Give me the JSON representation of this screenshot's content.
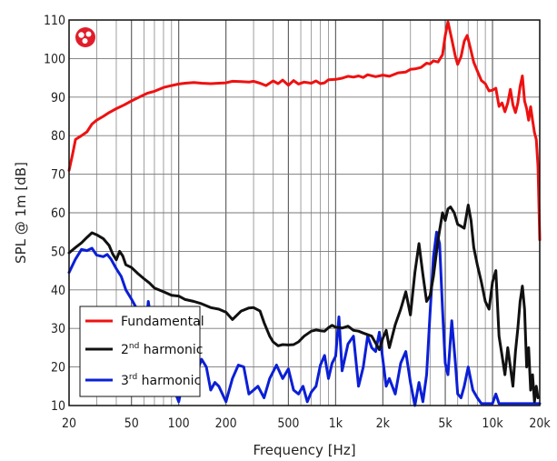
{
  "chart_data": {
    "type": "line",
    "title": "",
    "xlabel": "Frequency [Hz]",
    "ylabel": "SPL @ 1m [dB]",
    "xscale": "log",
    "xlim": [
      20,
      20000
    ],
    "ylim": [
      10,
      110
    ],
    "grid": true,
    "legend_position": "bottom-left",
    "x_ticks": [
      {
        "value": 20,
        "label": "20"
      },
      {
        "value": 50,
        "label": "50"
      },
      {
        "value": 100,
        "label": "100"
      },
      {
        "value": 200,
        "label": "200"
      },
      {
        "value": 500,
        "label": "500"
      },
      {
        "value": 1000,
        "label": "1k"
      },
      {
        "value": 2000,
        "label": "2k"
      },
      {
        "value": 5000,
        "label": "5k"
      },
      {
        "value": 10000,
        "label": "10k"
      },
      {
        "value": 20000,
        "label": "20k"
      }
    ],
    "y_ticks": [
      10,
      20,
      30,
      40,
      50,
      60,
      70,
      80,
      90,
      100,
      110
    ],
    "series": [
      {
        "name": "Fundamental",
        "color": "#ee1111",
        "points": [
          [
            20,
            71
          ],
          [
            21,
            75
          ],
          [
            22,
            79
          ],
          [
            24,
            80
          ],
          [
            26,
            81
          ],
          [
            28,
            83
          ],
          [
            30,
            84
          ],
          [
            33,
            85
          ],
          [
            36,
            86
          ],
          [
            40,
            87
          ],
          [
            45,
            88
          ],
          [
            50,
            89
          ],
          [
            56,
            90
          ],
          [
            63,
            91
          ],
          [
            70,
            91.5
          ],
          [
            80,
            92.5
          ],
          [
            90,
            93
          ],
          [
            100,
            93.4
          ],
          [
            110,
            93.6
          ],
          [
            125,
            93.8
          ],
          [
            140,
            93.6
          ],
          [
            160,
            93.5
          ],
          [
            180,
            93.6
          ],
          [
            200,
            93.7
          ],
          [
            220,
            94.1
          ],
          [
            250,
            94
          ],
          [
            280,
            93.9
          ],
          [
            300,
            94.1
          ],
          [
            330,
            93.6
          ],
          [
            360,
            93
          ],
          [
            400,
            94.2
          ],
          [
            430,
            93.5
          ],
          [
            460,
            94.4
          ],
          [
            500,
            93.1
          ],
          [
            540,
            94.3
          ],
          [
            580,
            93.4
          ],
          [
            630,
            93.9
          ],
          [
            700,
            93.6
          ],
          [
            750,
            94.2
          ],
          [
            800,
            93.5
          ],
          [
            850,
            93.7
          ],
          [
            900,
            94.5
          ],
          [
            1000,
            94.6
          ],
          [
            1100,
            94.9
          ],
          [
            1200,
            95.4
          ],
          [
            1300,
            95.2
          ],
          [
            1400,
            95.5
          ],
          [
            1500,
            95.1
          ],
          [
            1600,
            95.8
          ],
          [
            1800,
            95.3
          ],
          [
            2000,
            95.7
          ],
          [
            2200,
            95.4
          ],
          [
            2500,
            96.3
          ],
          [
            2800,
            96.5
          ],
          [
            3000,
            97.2
          ],
          [
            3200,
            97.3
          ],
          [
            3500,
            97.7
          ],
          [
            3800,
            98.8
          ],
          [
            4000,
            98.6
          ],
          [
            4200,
            99.4
          ],
          [
            4500,
            99.1
          ],
          [
            4800,
            101
          ],
          [
            5000,
            106
          ],
          [
            5200,
            109.5
          ],
          [
            5500,
            105
          ],
          [
            5800,
            100.5
          ],
          [
            6000,
            98.5
          ],
          [
            6300,
            100.5
          ],
          [
            6600,
            104.5
          ],
          [
            6900,
            106
          ],
          [
            7200,
            103
          ],
          [
            7600,
            99
          ],
          [
            8000,
            96.8
          ],
          [
            8500,
            94.3
          ],
          [
            9000,
            93.5
          ],
          [
            9500,
            91.6
          ],
          [
            10000,
            91.8
          ],
          [
            10500,
            92.3
          ],
          [
            11000,
            87.6
          ],
          [
            11500,
            88.5
          ],
          [
            12000,
            86.2
          ],
          [
            12500,
            88.5
          ],
          [
            13000,
            92
          ],
          [
            13500,
            88
          ],
          [
            14000,
            86
          ],
          [
            14500,
            88.5
          ],
          [
            15000,
            92.8
          ],
          [
            15500,
            95.5
          ],
          [
            16000,
            89
          ],
          [
            16500,
            87
          ],
          [
            17000,
            84
          ],
          [
            17500,
            87.5
          ],
          [
            18000,
            84
          ],
          [
            18500,
            80.8
          ],
          [
            19000,
            79
          ],
          [
            19500,
            72
          ],
          [
            20000,
            53
          ]
        ]
      },
      {
        "name": "2nd harmonic",
        "color": "#111111",
        "points": [
          [
            20,
            49.6
          ],
          [
            22,
            51
          ],
          [
            24,
            52.2
          ],
          [
            26,
            53.6
          ],
          [
            28,
            54.8
          ],
          [
            30,
            54.3
          ],
          [
            33,
            53.3
          ],
          [
            36,
            51.5
          ],
          [
            38,
            49.3
          ],
          [
            40,
            47.8
          ],
          [
            42,
            50
          ],
          [
            44,
            48.8
          ],
          [
            46,
            46.5
          ],
          [
            50,
            45.8
          ],
          [
            55,
            44.2
          ],
          [
            60,
            42.9
          ],
          [
            65,
            41.8
          ],
          [
            70,
            40.5
          ],
          [
            80,
            39.5
          ],
          [
            90,
            38.6
          ],
          [
            100,
            38.4
          ],
          [
            110,
            37.5
          ],
          [
            125,
            37
          ],
          [
            140,
            36.4
          ],
          [
            160,
            35.4
          ],
          [
            180,
            35
          ],
          [
            200,
            34.2
          ],
          [
            220,
            32.3
          ],
          [
            250,
            34.5
          ],
          [
            280,
            35.3
          ],
          [
            300,
            35.4
          ],
          [
            330,
            34.5
          ],
          [
            350,
            31.5
          ],
          [
            380,
            28
          ],
          [
            400,
            26.5
          ],
          [
            430,
            25.5
          ],
          [
            460,
            25.8
          ],
          [
            500,
            25.7
          ],
          [
            540,
            25.8
          ],
          [
            580,
            26.5
          ],
          [
            630,
            28
          ],
          [
            700,
            29.3
          ],
          [
            750,
            29.6
          ],
          [
            800,
            29.4
          ],
          [
            850,
            29.3
          ],
          [
            900,
            30.2
          ],
          [
            950,
            30.8
          ],
          [
            1000,
            30.3
          ],
          [
            1100,
            30.1
          ],
          [
            1200,
            30.6
          ],
          [
            1300,
            29.5
          ],
          [
            1400,
            29.3
          ],
          [
            1500,
            28.8
          ],
          [
            1700,
            28
          ],
          [
            1900,
            24.5
          ],
          [
            2000,
            27.4
          ],
          [
            2100,
            29.5
          ],
          [
            2200,
            25
          ],
          [
            2400,
            31
          ],
          [
            2600,
            35
          ],
          [
            2800,
            39.5
          ],
          [
            3000,
            33.5
          ],
          [
            3200,
            44.5
          ],
          [
            3400,
            52
          ],
          [
            3600,
            44
          ],
          [
            3800,
            37
          ],
          [
            4000,
            38.5
          ],
          [
            4200,
            43.5
          ],
          [
            4500,
            53
          ],
          [
            4800,
            60
          ],
          [
            5000,
            58
          ],
          [
            5200,
            61
          ],
          [
            5400,
            61.5
          ],
          [
            5700,
            60
          ],
          [
            6000,
            57
          ],
          [
            6300,
            56.5
          ],
          [
            6600,
            56
          ],
          [
            7000,
            62
          ],
          [
            7300,
            58
          ],
          [
            7600,
            51
          ],
          [
            8000,
            46.5
          ],
          [
            8500,
            42
          ],
          [
            9000,
            37
          ],
          [
            9500,
            35
          ],
          [
            10000,
            42
          ],
          [
            10500,
            45
          ],
          [
            11000,
            28
          ],
          [
            11500,
            23
          ],
          [
            12000,
            18
          ],
          [
            12500,
            25
          ],
          [
            13000,
            20
          ],
          [
            13500,
            15
          ],
          [
            14000,
            24
          ],
          [
            14500,
            30
          ],
          [
            15000,
            37
          ],
          [
            15500,
            41
          ],
          [
            16000,
            35
          ],
          [
            16500,
            20
          ],
          [
            17000,
            25
          ],
          [
            17500,
            14
          ],
          [
            18000,
            18
          ],
          [
            18500,
            11
          ],
          [
            19000,
            15
          ],
          [
            19500,
            12
          ]
        ]
      },
      {
        "name": "3rd harmonic",
        "color": "#0b1fd6",
        "points": [
          [
            20,
            44.5
          ],
          [
            22,
            48
          ],
          [
            24,
            50.5
          ],
          [
            26,
            50.2
          ],
          [
            28,
            50.8
          ],
          [
            30,
            49
          ],
          [
            33,
            48.6
          ],
          [
            35,
            49.2
          ],
          [
            37,
            48
          ],
          [
            40,
            45.5
          ],
          [
            43,
            43.5
          ],
          [
            46,
            40
          ],
          [
            50,
            37.6
          ],
          [
            55,
            34.5
          ],
          [
            60,
            33
          ],
          [
            62,
            31
          ],
          [
            64,
            37
          ],
          [
            66,
            33.5
          ],
          [
            70,
            30
          ],
          [
            75,
            27
          ],
          [
            80,
            22
          ],
          [
            90,
            16
          ],
          [
            100,
            11
          ],
          [
            110,
            19
          ],
          [
            120,
            23
          ],
          [
            130,
            18.5
          ],
          [
            140,
            22
          ],
          [
            150,
            20
          ],
          [
            160,
            14
          ],
          [
            170,
            16
          ],
          [
            180,
            15
          ],
          [
            200,
            11
          ],
          [
            220,
            17
          ],
          [
            240,
            20.5
          ],
          [
            260,
            20
          ],
          [
            280,
            13
          ],
          [
            300,
            14
          ],
          [
            320,
            15
          ],
          [
            350,
            12
          ],
          [
            380,
            17
          ],
          [
            420,
            20.5
          ],
          [
            460,
            17
          ],
          [
            500,
            19.5
          ],
          [
            540,
            14
          ],
          [
            580,
            13
          ],
          [
            620,
            15
          ],
          [
            660,
            11
          ],
          [
            700,
            13.5
          ],
          [
            750,
            15
          ],
          [
            800,
            20.5
          ],
          [
            850,
            23
          ],
          [
            900,
            17
          ],
          [
            950,
            21
          ],
          [
            1000,
            22.8
          ],
          [
            1050,
            33
          ],
          [
            1100,
            19
          ],
          [
            1200,
            26
          ],
          [
            1300,
            28
          ],
          [
            1400,
            15
          ],
          [
            1500,
            20
          ],
          [
            1600,
            28
          ],
          [
            1700,
            25
          ],
          [
            1800,
            24
          ],
          [
            1900,
            29
          ],
          [
            2000,
            22
          ],
          [
            2100,
            15
          ],
          [
            2200,
            17
          ],
          [
            2400,
            13
          ],
          [
            2600,
            21
          ],
          [
            2800,
            24
          ],
          [
            3000,
            16
          ],
          [
            3200,
            10
          ],
          [
            3400,
            16
          ],
          [
            3600,
            11
          ],
          [
            3800,
            18
          ],
          [
            4000,
            34
          ],
          [
            4200,
            48.5
          ],
          [
            4400,
            55
          ],
          [
            4600,
            52
          ],
          [
            4800,
            35
          ],
          [
            5000,
            21
          ],
          [
            5200,
            18
          ],
          [
            5500,
            32
          ],
          [
            5800,
            21
          ],
          [
            6000,
            13
          ],
          [
            6300,
            12
          ],
          [
            6600,
            15
          ],
          [
            7000,
            20
          ],
          [
            7500,
            14
          ],
          [
            8000,
            12
          ],
          [
            8500,
            10.5
          ],
          [
            10000,
            10.5
          ],
          [
            10500,
            13
          ],
          [
            11000,
            10.5
          ],
          [
            20000,
            10.5
          ]
        ]
      }
    ]
  },
  "badge": {
    "icon": "brand-logo-icon",
    "color": "#e11d2b"
  }
}
